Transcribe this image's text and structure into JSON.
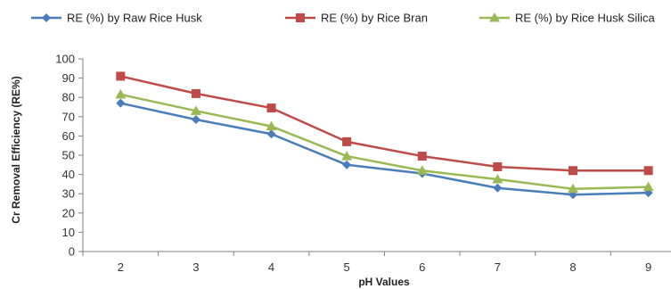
{
  "chart_data": {
    "type": "line",
    "title": "",
    "xlabel": "pH Values",
    "ylabel": "Cr Removal Efficiency (RE%)",
    "x": [
      2,
      3,
      4,
      5,
      6,
      7,
      8,
      9
    ],
    "ylim": [
      0,
      100
    ],
    "yticks": [
      0,
      10,
      20,
      30,
      40,
      50,
      60,
      70,
      80,
      90,
      100
    ],
    "grid": false,
    "legend_position": "top",
    "series": [
      {
        "name": "RE (%) by Raw Rice Husk",
        "color": "#4a7ebb",
        "marker": "diamond",
        "values": [
          77,
          68.5,
          61,
          45,
          40.5,
          33,
          29.5,
          30.5
        ]
      },
      {
        "name": "RE (%) by  Rice Bran",
        "color": "#be4b48",
        "marker": "square",
        "values": [
          91,
          82,
          74.5,
          57,
          49.5,
          44,
          42,
          42
        ]
      },
      {
        "name": "RE (%) by  Rice Husk Silica",
        "color": "#98b954",
        "marker": "triangle",
        "values": [
          81.5,
          73,
          65,
          49.5,
          42,
          37.5,
          32.5,
          33.5
        ]
      }
    ]
  }
}
